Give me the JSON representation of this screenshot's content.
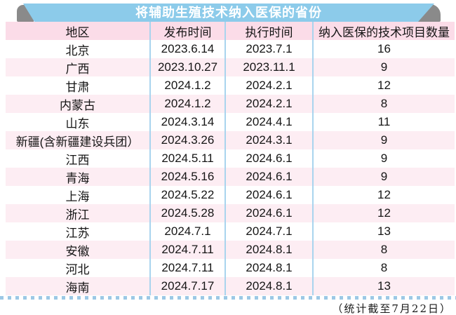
{
  "title": "将辅助生殖技术纳入医保的省份",
  "footnote": "（统计截至7月22日）",
  "colors": {
    "banner_blue": "#8ccbea",
    "fold_gray": "#8a8a8a",
    "header_pink": "#fbdce8",
    "row_alt_pink": "#fdedf3",
    "divider_blue": "#a9d4ee",
    "dotted_blue": "#9cc8e5",
    "title_text": "#ffffff",
    "body_text": "#151515"
  },
  "chart_data": {
    "type": "table",
    "title": "将辅助生殖技术纳入医保的省份",
    "columns": [
      "地区",
      "发布时间",
      "执行时间",
      "纳入医保的技术项目数量"
    ],
    "rows": [
      [
        "北京",
        "2023.6.14",
        "2023.7.1",
        "16"
      ],
      [
        "广西",
        "2023.10.27",
        "2023.11.1",
        "9"
      ],
      [
        "甘肃",
        "2024.1.2",
        "2024.2.1",
        "12"
      ],
      [
        "内蒙古",
        "2024.1.2",
        "2024.2.1",
        "8"
      ],
      [
        "山东",
        "2024.3.14",
        "2024.4.1",
        "11"
      ],
      [
        "新疆(含新疆建设兵团）",
        "2024.3.26",
        "2024.3.1",
        "9"
      ],
      [
        "江西",
        "2024.5.11",
        "2024.6.1",
        "9"
      ],
      [
        "青海",
        "2024.5.16",
        "2024.6.1",
        "9"
      ],
      [
        "上海",
        "2024.5.22",
        "2024.6.1",
        "12"
      ],
      [
        "浙江",
        "2024.5.28",
        "2024.6.1",
        "12"
      ],
      [
        "江苏",
        "2024.7.1",
        "2024.7.1",
        "13"
      ],
      [
        "安徽",
        "2024.7.11",
        "2024.8.1",
        "8"
      ],
      [
        "河北",
        "2024.7.11",
        "2024.8.1",
        "8"
      ],
      [
        "海南",
        "2024.7.17",
        "2024.8.1",
        "13"
      ]
    ],
    "annotations": [
      "（统计截至7月22日）"
    ],
    "layout": {
      "grid": "row-striped",
      "header_position": "top",
      "column_dividers": true
    }
  }
}
